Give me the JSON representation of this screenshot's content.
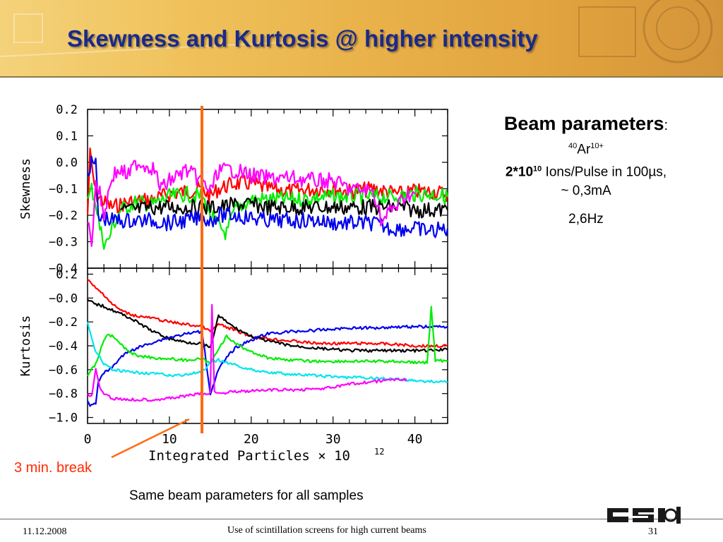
{
  "slide": {
    "title": "Skewness and Kurtosis @ higher intensity",
    "caption": "Same beam parameters for all samples",
    "break_label": "3 min. break"
  },
  "beam": {
    "heading": "Beam parameters",
    "heading_suffix": ":",
    "ion_mass": "40",
    "ion_symbol": "Ar",
    "ion_charge": "10+",
    "intensity_base": "2*10",
    "intensity_exp": "10",
    "intensity_text": " Ions/Pulse in 100µs,",
    "current": "~ 0,3mA",
    "frequency": "2,6Hz"
  },
  "footer": {
    "date": "11.12.2008",
    "title": "Use of scintillation screens for high current beams",
    "page": "31"
  },
  "colors": {
    "title": "#1a2a8a",
    "break_marker": "#ff6a10",
    "break_label": "#ff2a00"
  },
  "chart_data": [
    {
      "type": "line",
      "ylabel": "Skewness",
      "xlim": [
        0,
        44
      ],
      "ylim": [
        -0.4,
        0.2
      ],
      "yticks": [
        0.2,
        0.1,
        0.0,
        -0.1,
        -0.2,
        -0.3,
        -0.4
      ],
      "ytick_labels": [
        "0.2",
        "0.1",
        "0.0",
        "−0.1",
        "−0.2",
        "−0.3",
        "−0.4"
      ],
      "series": [
        {
          "color": "#ff0000",
          "x": [
            0,
            0.3,
            1,
            2,
            3,
            5,
            8,
            10,
            12,
            14,
            15,
            16,
            18,
            20,
            22,
            25,
            28,
            30,
            32,
            35,
            38,
            40,
            42,
            44
          ],
          "y": [
            -0.2,
            0.03,
            -0.12,
            -0.15,
            -0.17,
            -0.15,
            -0.14,
            -0.12,
            -0.11,
            -0.1,
            -0.13,
            -0.1,
            -0.08,
            -0.08,
            -0.1,
            -0.11,
            -0.1,
            -0.1,
            -0.11,
            -0.1,
            -0.12,
            -0.11,
            -0.11,
            -0.12
          ]
        },
        {
          "color": "#00ee00",
          "x": [
            0,
            0.5,
            1,
            1.5,
            2,
            2.5,
            3,
            4,
            6,
            8,
            10,
            12,
            14,
            15,
            16,
            17,
            18,
            20,
            25,
            30,
            35,
            38,
            40,
            42,
            44
          ],
          "y": [
            -0.15,
            -0.1,
            -0.15,
            -0.25,
            -0.3,
            -0.3,
            -0.25,
            -0.18,
            -0.15,
            -0.16,
            -0.13,
            -0.12,
            -0.13,
            -0.2,
            -0.24,
            -0.27,
            -0.18,
            -0.14,
            -0.14,
            -0.13,
            -0.13,
            -0.13,
            -0.12,
            -0.12,
            -0.13
          ]
        },
        {
          "color": "#000000",
          "x": [
            4,
            6,
            8,
            10,
            12,
            14,
            16,
            18,
            20,
            22,
            25,
            28,
            30,
            32,
            35,
            38,
            40,
            42,
            44
          ],
          "y": [
            -0.18,
            -0.18,
            -0.17,
            -0.17,
            -0.17,
            -0.17,
            -0.17,
            -0.16,
            -0.16,
            -0.17,
            -0.17,
            -0.17,
            -0.17,
            -0.17,
            -0.17,
            -0.17,
            -0.18,
            -0.18,
            -0.18
          ]
        },
        {
          "color": "#0000ee",
          "x": [
            0,
            0.3,
            1,
            1.3,
            1.6,
            2,
            3,
            5,
            8,
            10,
            12,
            14,
            15,
            16,
            18,
            20,
            22,
            25,
            28,
            30,
            35,
            37,
            40,
            42,
            44
          ],
          "y": [
            -0.04,
            -0.01,
            0.0,
            -0.2,
            -0.22,
            -0.21,
            -0.22,
            -0.22,
            -0.22,
            -0.23,
            -0.22,
            -0.21,
            -0.22,
            -0.2,
            -0.2,
            -0.21,
            -0.22,
            -0.22,
            -0.22,
            -0.23,
            -0.23,
            -0.25,
            -0.25,
            -0.26,
            -0.25
          ]
        },
        {
          "color": "#ff00ff",
          "x": [
            0,
            0.5,
            1,
            1.5,
            2,
            3,
            4,
            5,
            6,
            8,
            9,
            10,
            12,
            14,
            15,
            16,
            18,
            20,
            22,
            25,
            28,
            30,
            32,
            35,
            36,
            37,
            38,
            39,
            40
          ],
          "y": [
            -0.23,
            -0.3,
            -0.07,
            -0.12,
            -0.2,
            -0.05,
            -0.03,
            -0.05,
            0.0,
            -0.02,
            -0.1,
            -0.07,
            -0.03,
            -0.07,
            -0.11,
            -0.03,
            -0.03,
            -0.05,
            -0.06,
            -0.06,
            -0.07,
            -0.07,
            -0.1,
            -0.11,
            -0.23,
            -0.18,
            -0.16,
            -0.12,
            -0.12
          ]
        }
      ]
    },
    {
      "type": "line",
      "ylabel": "Kurtosis",
      "xlabel": "Integrated Particles × 10",
      "xlabel_exp": "12",
      "xlim": [
        0,
        44
      ],
      "ylim": [
        -1.05,
        0.25
      ],
      "xticks": [
        0,
        10,
        20,
        30,
        40
      ],
      "xtick_labels": [
        "0",
        "10",
        "20",
        "30",
        "40"
      ],
      "yticks": [
        0.2,
        0.0,
        -0.2,
        -0.4,
        -0.6,
        -0.8,
        -1.0
      ],
      "ytick_labels": [
        "0.2",
        "−0.0",
        "−0.2",
        "−0.4",
        "−0.6",
        "−0.8",
        "−1.0"
      ],
      "series": [
        {
          "color": "#ff0000",
          "x": [
            0,
            0.5,
            1,
            2,
            3,
            4,
            5,
            6,
            8,
            10,
            12,
            14,
            15,
            16,
            18,
            20,
            22,
            25,
            28,
            30,
            32,
            35,
            38,
            40,
            42,
            44
          ],
          "y": [
            0.15,
            0.12,
            0.08,
            0.03,
            -0.05,
            -0.1,
            -0.13,
            -0.15,
            -0.17,
            -0.2,
            -0.22,
            -0.24,
            -0.28,
            -0.22,
            -0.27,
            -0.32,
            -0.34,
            -0.36,
            -0.38,
            -0.38,
            -0.38,
            -0.38,
            -0.39,
            -0.4,
            -0.4,
            -0.4
          ]
        },
        {
          "color": "#000000",
          "x": [
            0,
            1,
            2,
            3,
            4,
            5,
            6,
            8,
            10,
            12,
            14,
            15,
            16,
            18,
            20,
            22,
            25,
            28,
            30,
            32,
            35,
            38,
            40,
            42,
            44
          ],
          "y": [
            -0.02,
            -0.05,
            -0.07,
            -0.1,
            -0.13,
            -0.16,
            -0.2,
            -0.28,
            -0.34,
            -0.37,
            -0.38,
            -0.42,
            -0.15,
            -0.25,
            -0.32,
            -0.36,
            -0.4,
            -0.42,
            -0.43,
            -0.44,
            -0.44,
            -0.44,
            -0.44,
            -0.44,
            -0.43
          ]
        },
        {
          "color": "#0000ee",
          "x": [
            0,
            0.3,
            1,
            1.3,
            2,
            3,
            4,
            5,
            6,
            8,
            10,
            12,
            14,
            15,
            16,
            17,
            18,
            20,
            22,
            25,
            28,
            30,
            32,
            35,
            38,
            40,
            42,
            44
          ],
          "y": [
            -0.85,
            -0.9,
            -0.88,
            -0.7,
            -0.63,
            -0.58,
            -0.5,
            -0.45,
            -0.42,
            -0.37,
            -0.33,
            -0.3,
            -0.28,
            -0.8,
            -0.6,
            -0.5,
            -0.42,
            -0.35,
            -0.3,
            -0.28,
            -0.27,
            -0.26,
            -0.25,
            -0.25,
            -0.24,
            -0.24,
            -0.24,
            -0.24
          ]
        },
        {
          "color": "#00ee00",
          "x": [
            0,
            1,
            2,
            2.5,
            3,
            4,
            5,
            6,
            8,
            10,
            12,
            14,
            15,
            16,
            17,
            18,
            20,
            22,
            25,
            28,
            30,
            35,
            38,
            40,
            41.5,
            42,
            42.5,
            44
          ],
          "y": [
            -0.65,
            -0.55,
            -0.35,
            -0.3,
            -0.32,
            -0.38,
            -0.45,
            -0.48,
            -0.5,
            -0.51,
            -0.52,
            -0.51,
            -0.55,
            -0.42,
            -0.32,
            -0.38,
            -0.45,
            -0.5,
            -0.52,
            -0.53,
            -0.53,
            -0.53,
            -0.53,
            -0.54,
            -0.54,
            -0.08,
            -0.52,
            -0.53
          ]
        },
        {
          "color": "#00e5ee",
          "x": [
            0,
            1,
            2,
            3,
            5,
            8,
            10,
            12,
            14,
            15,
            16,
            18,
            20,
            22,
            25,
            28,
            30,
            35,
            38,
            40,
            42,
            44
          ],
          "y": [
            -0.2,
            -0.45,
            -0.55,
            -0.6,
            -0.62,
            -0.63,
            -0.65,
            -0.64,
            -0.62,
            -0.55,
            -0.52,
            -0.56,
            -0.6,
            -0.62,
            -0.64,
            -0.65,
            -0.66,
            -0.67,
            -0.68,
            -0.69,
            -0.7,
            -0.7
          ]
        },
        {
          "color": "#ff00ff",
          "x": [
            0,
            0.5,
            1,
            1.5,
            2,
            3,
            5,
            8,
            10,
            12,
            14,
            15,
            15.2,
            15.5,
            16,
            18,
            20,
            22,
            25,
            28,
            30,
            32,
            35,
            38,
            39
          ],
          "y": [
            -0.8,
            -0.82,
            -0.6,
            -0.75,
            -0.8,
            -0.84,
            -0.85,
            -0.85,
            -0.84,
            -0.82,
            -0.8,
            -0.8,
            -0.06,
            -0.78,
            -0.8,
            -0.78,
            -0.78,
            -0.77,
            -0.77,
            -0.76,
            -0.75,
            -0.72,
            -0.7,
            -0.68,
            -0.68
          ]
        }
      ]
    }
  ]
}
